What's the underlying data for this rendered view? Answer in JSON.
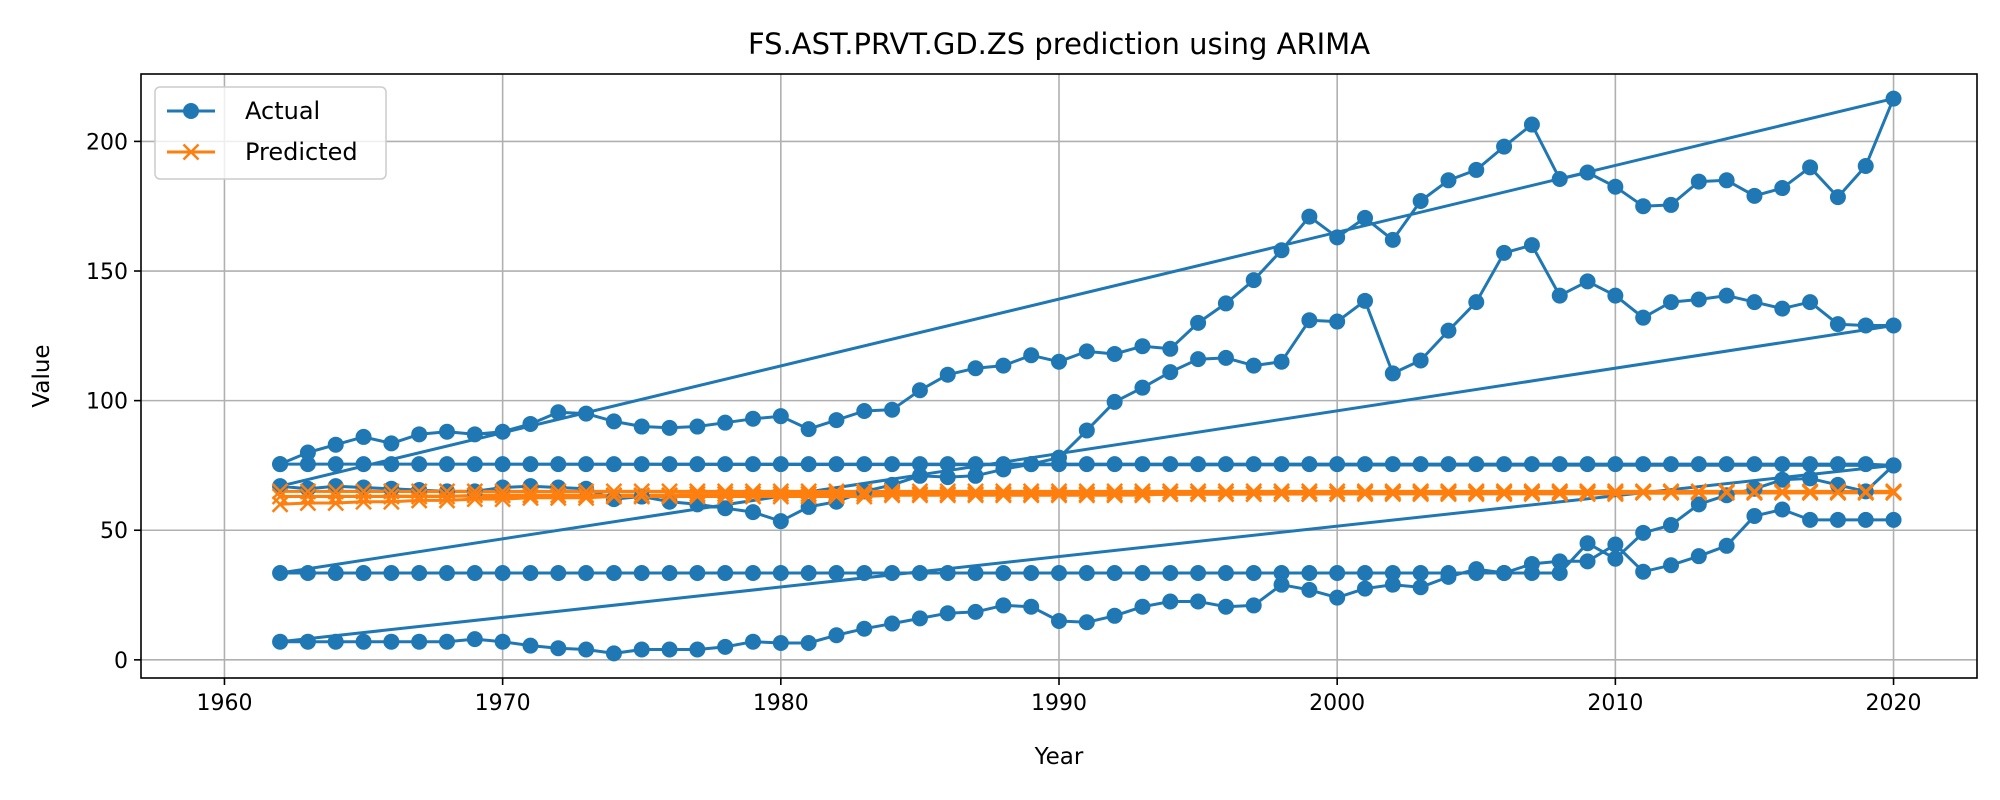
{
  "chart_data": {
    "type": "line",
    "title": "FS.AST.PRVT.GD.ZS prediction using ARIMA",
    "xlabel": "Year",
    "ylabel": "Value",
    "xlim": [
      1957,
      2023
    ],
    "ylim": [
      -7,
      226
    ],
    "xticks": [
      1960,
      1970,
      1980,
      1990,
      2000,
      2010,
      2020
    ],
    "yticks": [
      0,
      50,
      100,
      150,
      200
    ],
    "grid": true,
    "legend_position": "top-left",
    "series": [
      {
        "name": "Actual",
        "color": "#1f77b4",
        "marker": "circle",
        "x": [
          1962,
          1963,
          1964,
          1965,
          1966,
          1967,
          1968,
          1969,
          1970,
          1971,
          1972,
          1973,
          1974,
          1975,
          1976,
          1977,
          1978,
          1979,
          1980,
          1981,
          1982,
          1983,
          1984,
          1985,
          1986,
          1987,
          1988,
          1989,
          1990,
          1991,
          1992,
          1993,
          1994,
          1995,
          1996,
          1997,
          1998,
          1999,
          2000,
          2001,
          2002,
          2003,
          2004,
          2005,
          2006,
          2007,
          2008,
          2009,
          2010,
          2011,
          2012,
          2013,
          2014,
          2015,
          2016,
          2017,
          2018,
          2019,
          2020,
          1962,
          1963,
          1964,
          1965,
          1966,
          1967,
          1968,
          1969,
          1970,
          1971,
          1972,
          1973,
          1974,
          1975,
          1976,
          1977,
          1978,
          1979,
          1980,
          1981,
          1982,
          1983,
          1984,
          1985,
          1986,
          1987,
          1988,
          1989,
          1990,
          1991,
          1992,
          1993,
          1994,
          1995,
          1996,
          1997,
          1998,
          1999,
          2000,
          2001,
          2002,
          2003,
          2004,
          2005,
          2006,
          2007,
          2008,
          2009,
          2010,
          2011,
          2012,
          2013,
          2014,
          2015,
          2016,
          2017,
          2018,
          2019,
          2020,
          1962,
          1963,
          1964,
          1965,
          1966,
          1967,
          1968,
          1969,
          1970,
          1971,
          1972,
          1973,
          1974,
          1975,
          1976,
          1977,
          1978,
          1979,
          1980,
          1981,
          1982,
          1983,
          1984,
          1985,
          1986,
          1987,
          1988,
          1989,
          1990,
          1991,
          1992,
          1993,
          1994,
          1995,
          1996,
          1997,
          1998,
          1999,
          2000,
          2001,
          2002,
          2003,
          2004,
          2005,
          2006,
          2007,
          2008,
          2009,
          2010,
          2011,
          2012,
          2013,
          2014,
          2015,
          2016,
          2017,
          2018,
          2019,
          2020,
          1962,
          1963,
          1964,
          1965,
          1966,
          1967,
          1968,
          1969,
          1970,
          1971,
          1972,
          1973,
          1974,
          1975,
          1976,
          1977,
          1978,
          1979,
          1980,
          1981,
          1982,
          1983,
          1984,
          1985,
          1986,
          1987,
          1988,
          1989,
          1990,
          1991,
          1992,
          1993,
          1994,
          1995,
          1996,
          1997,
          1998,
          1999,
          2000,
          2001,
          2002,
          2003,
          2004,
          2005,
          2006,
          2007,
          2008,
          2009,
          2010,
          2011,
          2012,
          2013,
          2014,
          2015,
          2016,
          2017,
          2018,
          2019,
          2020,
          1962,
          1963,
          1964,
          1965,
          1966,
          1967,
          1968,
          1969,
          1970,
          1971,
          1972,
          1973,
          1974,
          1975,
          1976,
          1977,
          1978,
          1979,
          1980,
          1981,
          1982,
          1983,
          1984,
          1985,
          1986,
          1987,
          1988,
          1989,
          1990,
          1991,
          1992,
          1993,
          1994,
          1995,
          1996,
          1997,
          1998,
          1999,
          2000,
          2001,
          2002,
          2003,
          2004,
          2005,
          2006,
          2007,
          2008,
          2009,
          2010,
          2011,
          2012,
          2013,
          2014,
          2015,
          2016,
          2017,
          2018,
          2019,
          2020
        ],
        "y": [
          75.5,
          75.5,
          75.5,
          75.5,
          75.5,
          75.5,
          75.5,
          75.5,
          75.5,
          75.5,
          75.5,
          75.5,
          75.5,
          75.5,
          75.5,
          75.5,
          75.5,
          75.5,
          75.5,
          75.5,
          75.5,
          75.5,
          75.5,
          75.5,
          75.5,
          75.5,
          75.5,
          75.5,
          75.5,
          75.5,
          75.5,
          75.5,
          75.5,
          75.5,
          75.5,
          75.5,
          75.5,
          75.5,
          75.5,
          75.5,
          75.5,
          75.5,
          75.5,
          75.5,
          75.5,
          75.5,
          75.5,
          75.5,
          75.5,
          75.5,
          75.5,
          75.5,
          75.5,
          75.5,
          75.5,
          75.5,
          75.5,
          75.5,
          75,
          75.5,
          80,
          83,
          86,
          83.5,
          87,
          88,
          87,
          88,
          91,
          95.5,
          95,
          92,
          90,
          89.5,
          90,
          91.5,
          93,
          94,
          89,
          92.5,
          96,
          96.5,
          104,
          110,
          112.5,
          113.5,
          117.5,
          115,
          119,
          118,
          121,
          120,
          130,
          137.5,
          146.5,
          158,
          171,
          163,
          170.5,
          162,
          177,
          185,
          189,
          198,
          206.5,
          185.5,
          188,
          182.5,
          175,
          175.5,
          184.5,
          185,
          179,
          182,
          190,
          178.5,
          190.5,
          216.5,
          67,
          66,
          67,
          66.5,
          66,
          65.5,
          65,
          65,
          66.5,
          67,
          66.5,
          66,
          62,
          63,
          61,
          60,
          58.5,
          57,
          53.5,
          59,
          61,
          65,
          67.5,
          71,
          70.5,
          71,
          73.5,
          75.5,
          78,
          88.5,
          99.5,
          105,
          111,
          116,
          116.5,
          113.5,
          115,
          131,
          130.5,
          138.5,
          110.5,
          115.5,
          127,
          138,
          157,
          160,
          140.5,
          146,
          140.5,
          132,
          138,
          139,
          140.5,
          138,
          135.5,
          138,
          129.5,
          129,
          129,
          33.5,
          33.5,
          33.5,
          33.5,
          33.5,
          33.5,
          33.5,
          33.5,
          33.5,
          33.5,
          33.5,
          33.5,
          33.5,
          33.5,
          33.5,
          33.5,
          33.5,
          33.5,
          33.5,
          33.5,
          33.5,
          33.5,
          33.5,
          33.5,
          33.5,
          33.5,
          33.5,
          33.5,
          33.5,
          33.5,
          33.5,
          33.5,
          33.5,
          33.5,
          33.5,
          33.5,
          33.5,
          33.5,
          33.5,
          33.5,
          33.5,
          33.5,
          33.5,
          33.5,
          33.5,
          33.5,
          33.5,
          45,
          39,
          49,
          52,
          60,
          63.5,
          66,
          69.5,
          70,
          67.5,
          65,
          75,
          7,
          7,
          7,
          7,
          7,
          7,
          7,
          8,
          7,
          5.5,
          4.5,
          4,
          2.5,
          4,
          4,
          4,
          5,
          7,
          6.5,
          6.5,
          9.5,
          12,
          14,
          16,
          18,
          18.5,
          21,
          20.5,
          15,
          14.5,
          17,
          20.5,
          22.5,
          22.5,
          20.5,
          21,
          29,
          27,
          24,
          27.5,
          29,
          28,
          32,
          35,
          33.5,
          37,
          38,
          38,
          44.5,
          34,
          36.5,
          40,
          44,
          55.5,
          58,
          54,
          54,
          54,
          54
        ]
      },
      {
        "name": "Predicted",
        "color": "#ff7f0e",
        "marker": "x",
        "x": [
          1962,
          1963,
          1964,
          1965,
          1966,
          1967,
          1968,
          1969,
          1970,
          1971,
          1972,
          1973,
          1974,
          1975,
          1976,
          1977,
          1978,
          1979,
          1980,
          1981,
          1982,
          1983,
          1984,
          1985,
          1986,
          1987,
          1988,
          1989,
          1990,
          1991,
          1992,
          1993,
          1994,
          1995,
          1996,
          1997,
          1998,
          1999,
          2000,
          2001,
          2002,
          2003,
          2004,
          2005,
          2006,
          2007,
          2008,
          2009,
          2010,
          2011,
          2012,
          2013,
          2014,
          2015,
          2016,
          2017,
          2018,
          2019,
          2020,
          1962,
          1963,
          1964,
          1965,
          1966,
          1967,
          1968,
          1969,
          1970,
          1971,
          1972,
          1973,
          1974,
          1975,
          1976,
          1977,
          1978,
          1979,
          1980,
          1981,
          1982,
          1983,
          1984,
          1985,
          1986,
          1987,
          1988,
          1989,
          1990,
          1991,
          1992,
          1993,
          1994,
          1995,
          1996,
          1997,
          1998,
          1999,
          2000,
          2001,
          2002,
          2003,
          2004,
          2005,
          2006,
          2007,
          2008,
          2009,
          2010,
          2011,
          2012,
          2013,
          2014,
          2015,
          2016,
          2017,
          2018,
          2019,
          2020,
          1962,
          1963,
          1964,
          1965,
          1966,
          1967,
          1968,
          1969,
          1970,
          1971,
          1972,
          1973,
          1974,
          1975,
          1976,
          1977,
          1978,
          1979,
          1980,
          1981,
          1982,
          1983,
          1984,
          1985,
          1986,
          1987,
          1988,
          1989,
          1990,
          1991,
          1992,
          1993,
          1994,
          1995,
          1996,
          1997,
          1998,
          1999,
          2000,
          2001,
          2002,
          2003,
          2004,
          2005,
          2006,
          2007,
          2008,
          2009,
          2010,
          2011,
          2012,
          2013,
          2014,
          2015,
          2016,
          2017,
          2018,
          2019,
          2020
        ],
        "y": [
          60,
          60.5,
          60.5,
          61,
          61,
          61.5,
          61.5,
          62,
          62,
          62.5,
          62.5,
          62.5,
          63,
          63,
          63,
          63,
          63,
          63,
          63,
          63,
          63,
          63,
          63.5,
          63.5,
          63.5,
          63.5,
          63.5,
          63.5,
          63.5,
          63.5,
          63.5,
          63.5,
          64,
          64,
          64,
          64,
          64,
          64,
          64,
          64,
          64,
          64,
          64,
          64,
          64,
          64,
          64,
          64,
          64,
          64.5,
          64.5,
          64.5,
          64.5,
          64.5,
          64.5,
          64.5,
          64.5,
          64.5,
          64.5,
          63,
          63,
          63,
          63,
          63,
          63,
          63,
          63.5,
          63.5,
          63.5,
          63.5,
          63.5,
          63.5,
          63.5,
          63.5,
          64,
          64,
          64,
          64,
          64,
          64,
          64,
          64,
          64,
          64,
          64,
          64,
          64,
          64,
          64,
          64,
          64,
          64,
          64,
          64,
          64,
          64,
          64,
          64,
          64.5,
          64.5,
          64.5,
          64.5,
          64.5,
          64.5,
          64.5,
          64.5,
          64.5,
          64.5,
          64.5,
          64.5,
          64.5,
          64.5,
          64.5,
          64.5,
          64.5,
          64.5,
          64.5,
          64.5,
          65,
          65,
          65,
          65,
          65,
          65,
          65,
          65,
          65,
          65,
          65,
          65,
          65,
          65,
          65,
          65,
          65,
          65,
          65,
          65,
          65,
          65,
          65,
          65,
          65,
          65,
          65,
          65,
          65,
          65,
          65,
          65,
          65,
          65,
          65,
          65,
          65,
          65,
          65,
          65,
          65,
          65,
          65,
          65,
          65,
          65,
          65,
          65,
          65,
          65,
          65,
          65,
          65,
          65,
          65,
          65,
          65,
          65,
          65
        ]
      }
    ]
  }
}
